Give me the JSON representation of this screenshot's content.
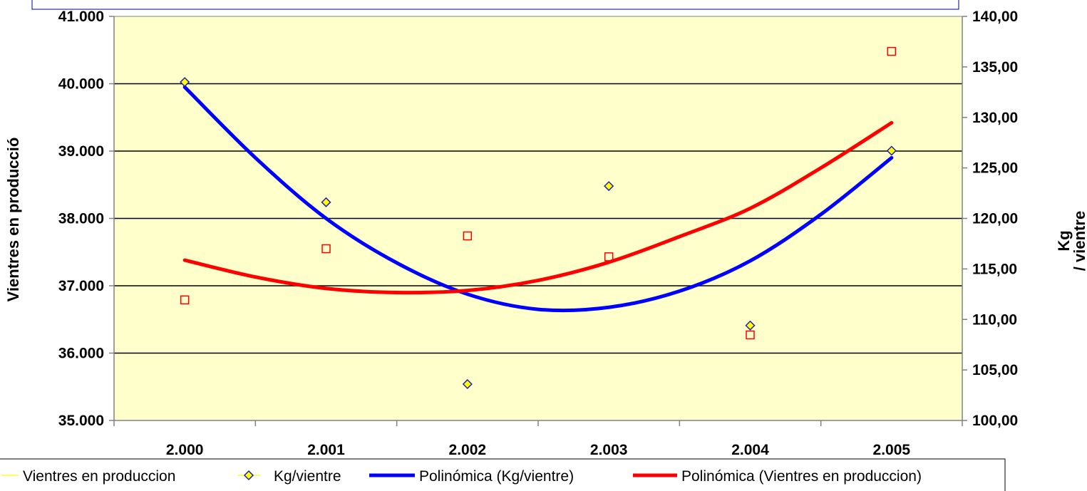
{
  "chart_data": {
    "type": "scatter",
    "categories": [
      "2.000",
      "2.001",
      "2.002",
      "2.003",
      "2.004",
      "2.005"
    ],
    "y_left": {
      "label": "Vientres en producció",
      "ylim": [
        35000,
        41000
      ],
      "ticks": [
        35000,
        36000,
        37000,
        38000,
        39000,
        40000,
        41000
      ],
      "tick_labels": [
        "35.000",
        "36.000",
        "37.000",
        "38.000",
        "39.000",
        "40.000",
        "41.000"
      ]
    },
    "y_right": {
      "label_line1": "Kg",
      "label_line2": "/ vientre",
      "ylim": [
        100,
        140
      ],
      "ticks": [
        100,
        105,
        110,
        115,
        120,
        125,
        130,
        135,
        140
      ],
      "tick_labels": [
        "100,00",
        "105,00",
        "110,00",
        "115,00",
        "120,00",
        "125,00",
        "130,00",
        "135,00",
        "140,00"
      ]
    },
    "series": [
      {
        "name": "Vientres en produccion",
        "axis": "left",
        "marker": "square",
        "color": "#ff0000",
        "values": [
          36790,
          37550,
          37740,
          37430,
          36270,
          40480
        ]
      },
      {
        "name": "Kg/vientre",
        "axis": "right",
        "marker": "diamond",
        "color": "#1f1fb4",
        "fill": "#ffff00",
        "values": [
          133.5,
          121.6,
          103.6,
          123.2,
          109.4,
          126.7
        ]
      },
      {
        "name": "Polinómica (Kg/vientre)",
        "axis": "right",
        "type": "trendline",
        "color": "#0000ff",
        "x": [
          0,
          0.5,
          1,
          1.5,
          2,
          2.5,
          3,
          3.5,
          4,
          4.5,
          5
        ],
        "values": [
          133.0,
          126.0,
          120.0,
          115.6,
          112.5,
          111.0,
          111.2,
          112.8,
          115.8,
          120.4,
          126.0
        ]
      },
      {
        "name": "Polinómica (Vientres en produccion)",
        "axis": "left",
        "type": "trendline",
        "color": "#ff0000",
        "x": [
          0,
          0.5,
          1,
          1.5,
          2,
          2.5,
          3,
          3.5,
          4,
          4.5,
          5
        ],
        "values": [
          37380,
          37130,
          36960,
          36900,
          36930,
          37080,
          37350,
          37730,
          38150,
          38750,
          39420
        ]
      }
    ],
    "plot_background": "#ffffcc",
    "grid": true,
    "legend_position": "bottom"
  }
}
